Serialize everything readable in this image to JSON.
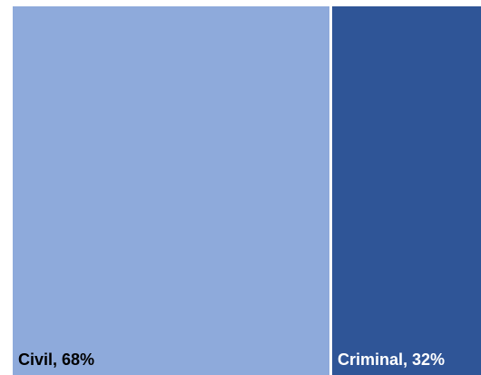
{
  "chart_data": {
    "type": "treemap",
    "categories": [
      "Civil",
      "Criminal"
    ],
    "values": [
      68,
      32
    ],
    "labels": [
      "Civil, 68%",
      "Criminal, 32%"
    ],
    "colors": [
      "#8eaadb",
      "#2f5597"
    ],
    "label_colors": [
      "#000000",
      "#ffffff"
    ],
    "title": "",
    "legend": "none"
  }
}
